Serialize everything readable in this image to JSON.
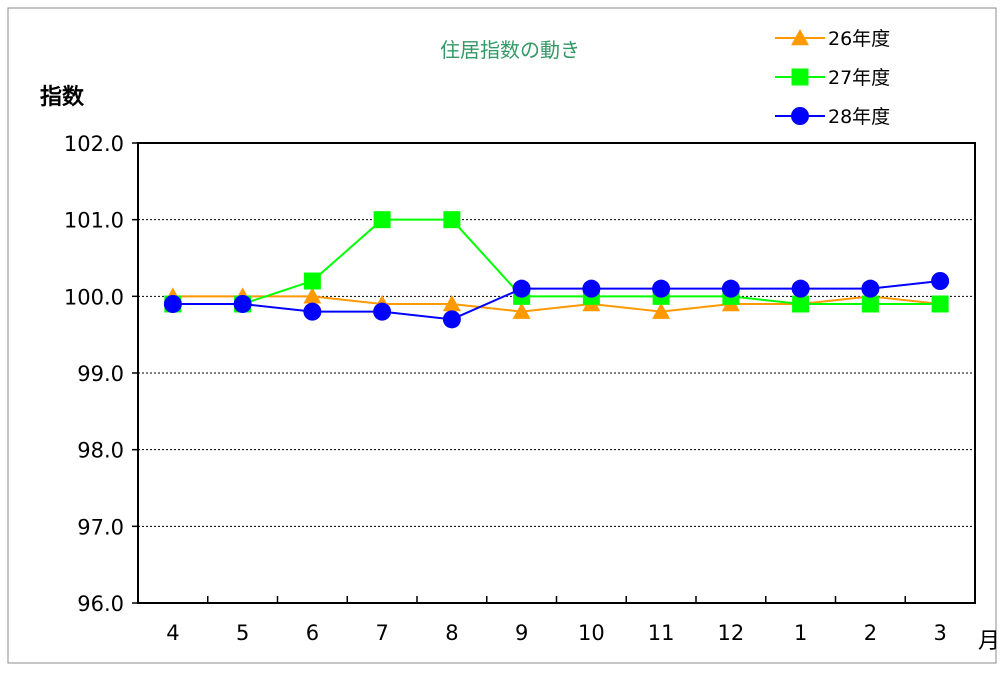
{
  "chart_data": {
    "type": "line",
    "title": "住居指数の動き",
    "ylabel": "指数",
    "xlabel": "月",
    "categories": [
      "4",
      "5",
      "6",
      "7",
      "8",
      "9",
      "10",
      "11",
      "12",
      "1",
      "2",
      "3"
    ],
    "ylim": [
      96.0,
      102.0
    ],
    "yticks": [
      "102.0",
      "101.0",
      "100.0",
      "99.0",
      "98.0",
      "97.0",
      "96.0"
    ],
    "grid": true,
    "legend_position": "top-right",
    "series": [
      {
        "name": "26年度",
        "color": "#FF9900",
        "marker": "triangle",
        "values": [
          100.0,
          100.0,
          100.0,
          99.9,
          99.9,
          99.8,
          99.9,
          99.8,
          99.9,
          99.9,
          100.0,
          99.9
        ]
      },
      {
        "name": "27年度",
        "color": "#00FF00",
        "marker": "square",
        "values": [
          99.9,
          99.9,
          100.2,
          101.0,
          101.0,
          100.0,
          100.0,
          100.0,
          100.0,
          99.9,
          99.9,
          99.9
        ]
      },
      {
        "name": "28年度",
        "color": "#0000FF",
        "marker": "circle",
        "values": [
          99.9,
          99.9,
          99.8,
          99.8,
          99.7,
          100.1,
          100.1,
          100.1,
          100.1,
          100.1,
          100.1,
          100.2
        ]
      }
    ]
  }
}
